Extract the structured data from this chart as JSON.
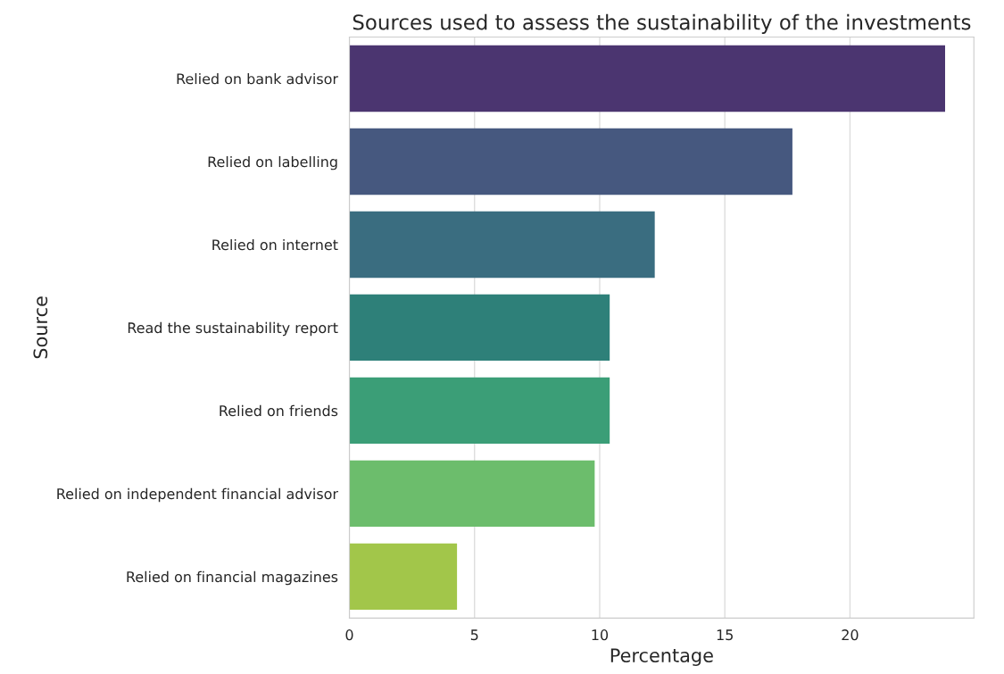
{
  "chart_data": {
    "type": "bar",
    "orientation": "horizontal",
    "title": "Sources used to assess the sustainability of the investments",
    "xlabel": "Percentage",
    "ylabel": "Source",
    "categories": [
      "Relied on bank advisor",
      "Relied on labelling",
      "Relied on internet",
      "Read the sustainability report",
      "Relied on friends",
      "Relied on independent financial advisor",
      "Relied on financial magazines"
    ],
    "values": [
      23.8,
      17.7,
      12.2,
      10.4,
      10.4,
      9.8,
      4.3
    ],
    "colors": [
      "#4b3570",
      "#46587f",
      "#3a6d80",
      "#2e8079",
      "#3b9e77",
      "#6cbd6c",
      "#a2c64a"
    ],
    "xlim": [
      0,
      24.95
    ],
    "xticks": [
      0,
      5,
      10,
      15,
      20
    ],
    "grid": "x"
  }
}
